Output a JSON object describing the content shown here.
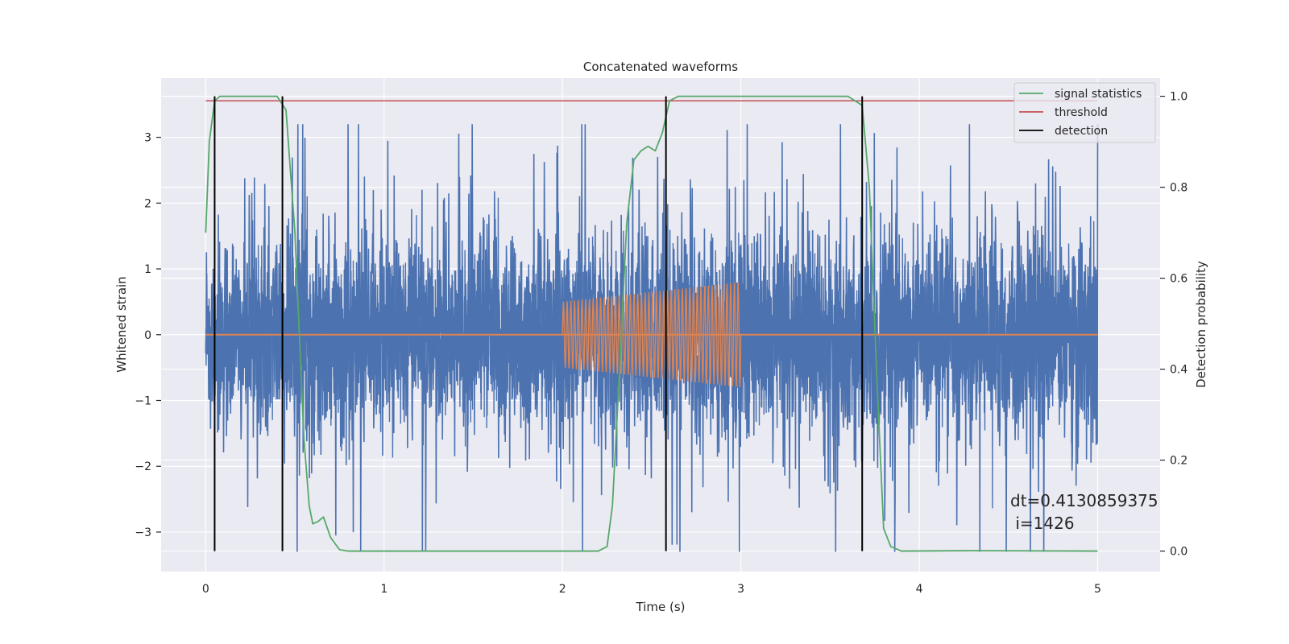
{
  "chart_data": {
    "type": "line",
    "title": "Concatenated waveforms",
    "xlabel": "Time (s)",
    "ylabel": "Whitened strain",
    "y2label": "Detection probability",
    "xlim": [
      -0.25,
      5.35
    ],
    "ylim": [
      -3.6,
      3.9
    ],
    "y2lim": [
      -0.045,
      1.04
    ],
    "xticks": [
      0,
      1,
      2,
      3,
      4,
      5
    ],
    "yticks": [
      -3,
      -2,
      -1,
      0,
      1,
      2,
      3
    ],
    "y2ticks": [
      0.0,
      0.2,
      0.4,
      0.6,
      0.8,
      1.0
    ],
    "xtick_labels": [
      "0",
      "1",
      "2",
      "3",
      "4",
      "5"
    ],
    "ytick_labels": [
      "−3",
      "−2",
      "−1",
      "0",
      "1",
      "2",
      "3"
    ],
    "y2tick_labels": [
      "0.0",
      "0.2",
      "0.4",
      "0.6",
      "0.8",
      "1.0"
    ],
    "grid": true,
    "legend_position": "top-right",
    "legend": [
      {
        "label": "signal statistics",
        "color": "#55a868"
      },
      {
        "label": "threshold",
        "color": "#c44e52"
      },
      {
        "label": "detection",
        "color": "#000000"
      }
    ],
    "series": [
      {
        "color": "#4c72b0",
        "axis": "left",
        "description_x_range": [
          0,
          5
        ],
        "approx_amplitude": [
          -3.3,
          3.2
        ]
      },
      {
        "color": "#dd8452",
        "axis": "left",
        "segment": {
          "x": [
            2.0,
            3.0
          ],
          "start_amplitude": 0.5,
          "end_amplitude": 0.8,
          "cycles": 48
        },
        "baseline": 0
      },
      {
        "name": "signal statistics",
        "color": "#55a868",
        "axis": "right",
        "x": [
          0,
          0.02,
          0.05,
          0.08,
          0.12,
          0.3,
          0.4,
          0.45,
          0.5,
          0.55,
          0.58,
          0.6,
          0.63,
          0.66,
          0.7,
          0.75,
          0.8,
          1.5,
          2.2,
          2.25,
          2.28,
          2.32,
          2.36,
          2.4,
          2.44,
          2.48,
          2.52,
          2.56,
          2.6,
          2.65,
          2.7,
          3.6,
          3.68,
          3.72,
          3.76,
          3.8,
          3.84,
          3.9,
          4.3,
          5.0
        ],
        "y": [
          0.7,
          0.9,
          0.99,
          1.0,
          1.0,
          1.0,
          1.0,
          0.97,
          0.7,
          0.25,
          0.1,
          0.06,
          0.065,
          0.075,
          0.03,
          0.003,
          0.0,
          0.0,
          0.0,
          0.01,
          0.1,
          0.4,
          0.72,
          0.86,
          0.88,
          0.89,
          0.88,
          0.92,
          0.99,
          1.0,
          1.0,
          1.0,
          0.98,
          0.8,
          0.4,
          0.05,
          0.01,
          0.0,
          0.001,
          0.0
        ]
      },
      {
        "name": "threshold",
        "color": "#c44e52",
        "axis": "right",
        "x": [
          0,
          5
        ],
        "y": [
          0.99,
          0.99
        ]
      }
    ],
    "detections_x": [
      0.05,
      0.43,
      2.58,
      3.68
    ],
    "detection_color": "#000000",
    "annotation_lines": [
      "dt=0.4130859375",
      " i=1426"
    ],
    "annotation_anchor": [
      4.52,
      -2.7
    ],
    "colors": {
      "axes_bg": "#eaeaf2",
      "grid": "#ffffff",
      "text": "#262626"
    }
  }
}
